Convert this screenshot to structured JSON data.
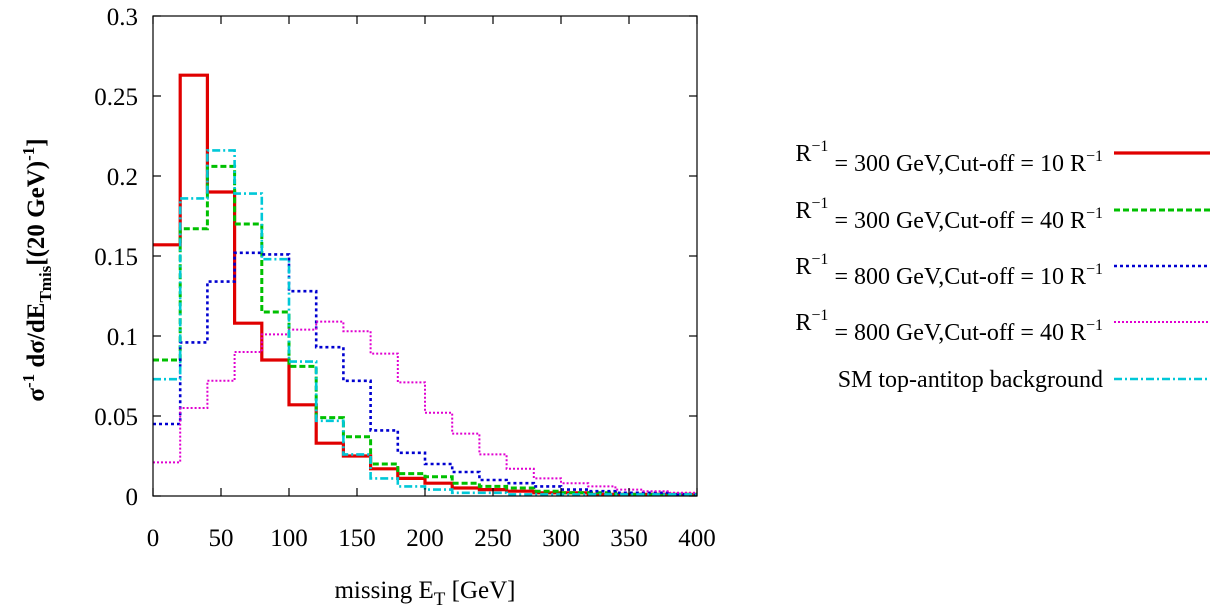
{
  "chart_data": {
    "type": "line",
    "style": "step-histogram",
    "xlabel": "missing E",
    "xlabel_sub": "T",
    "xlabel_unit": " [GeV]",
    "ylabel": {
      "sigma": "σ",
      "sup1": "-1",
      "mid": " dσ/dE",
      "sub": "Tmis",
      "bracket": "[(20 GeV)",
      "sup2": "-1",
      "close": "]"
    },
    "xlim": [
      0,
      400
    ],
    "ylim": [
      0,
      0.3
    ],
    "xticks": [
      "0",
      "50",
      "100",
      "150",
      "200",
      "250",
      "300",
      "350",
      "400"
    ],
    "yticks": [
      "0",
      "0.05",
      "0.1",
      "0.15",
      "0.2",
      "0.25",
      "0.3"
    ],
    "grid": false,
    "legend_position": "right",
    "bin_edges": [
      0,
      20,
      40,
      60,
      80,
      100,
      120,
      140,
      160,
      180,
      200,
      220,
      240,
      260,
      280,
      300,
      320,
      340,
      360,
      380,
      400
    ],
    "series": [
      {
        "label_pre": "R",
        "label_sup": "−1",
        "label_mid": " = 300 GeV,Cut-off = 10 R",
        "label_sup2": "−1",
        "color": "#e00000",
        "dash": "",
        "width": 3.2,
        "values": [
          0.157,
          0.263,
          0.19,
          0.108,
          0.085,
          0.057,
          0.033,
          0.025,
          0.017,
          0.011,
          0.008,
          0.005,
          0.004,
          0.003,
          0.002,
          0.002,
          0.001,
          0.001,
          0.001,
          0.001
        ]
      },
      {
        "label_pre": "R",
        "label_sup": "−1",
        "label_mid": " = 300 GeV,Cut-off = 40 R",
        "label_sup2": "−1",
        "color": "#00c000",
        "dash": "6,3",
        "width": 3,
        "values": [
          0.085,
          0.167,
          0.206,
          0.17,
          0.115,
          0.081,
          0.049,
          0.037,
          0.02,
          0.014,
          0.012,
          0.008,
          0.006,
          0.005,
          0.003,
          0.002,
          0.002,
          0.001,
          0.001,
          0.001
        ]
      },
      {
        "label_pre": "R",
        "label_sup": "−1",
        "label_mid": " = 800 GeV,Cut-off = 10 R",
        "label_sup2": "−1",
        "color": "#0000d0",
        "dash": "3,3",
        "width": 2.6,
        "values": [
          0.045,
          0.096,
          0.134,
          0.152,
          0.151,
          0.128,
          0.093,
          0.072,
          0.041,
          0.027,
          0.02,
          0.015,
          0.01,
          0.008,
          0.006,
          0.004,
          0.003,
          0.002,
          0.002,
          0.001
        ]
      },
      {
        "label_pre": "R",
        "label_sup": "−1",
        "label_mid": " = 800 GeV,Cut-off = 40 R",
        "label_sup2": "−1",
        "color": "#e000d0",
        "dash": "2,2",
        "width": 2,
        "values": [
          0.021,
          0.055,
          0.072,
          0.09,
          0.101,
          0.104,
          0.109,
          0.103,
          0.089,
          0.071,
          0.052,
          0.039,
          0.026,
          0.017,
          0.011,
          0.008,
          0.006,
          0.004,
          0.003,
          0.002
        ]
      },
      {
        "label_pre": "SM top-antitop background",
        "label_sup": "",
        "label_mid": "",
        "label_sup2": "",
        "color": "#00c8d8",
        "dash": "8,3,2,3",
        "width": 2.6,
        "values": [
          0.073,
          0.186,
          0.216,
          0.189,
          0.148,
          0.084,
          0.047,
          0.026,
          0.011,
          0.006,
          0.004,
          0.002,
          0.002,
          0.001,
          0.001,
          0.001,
          0.001,
          0.001,
          0.001,
          0.001
        ]
      }
    ]
  }
}
